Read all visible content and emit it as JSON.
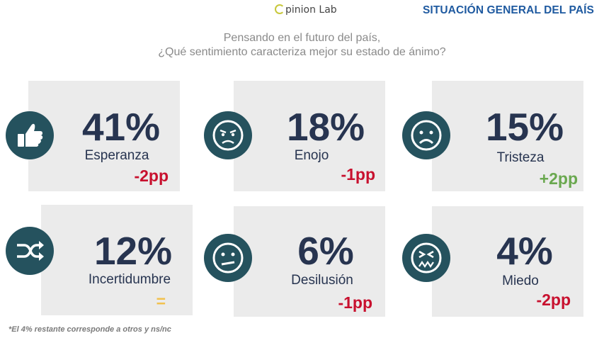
{
  "brand": {
    "logo_text": "pinion Lab"
  },
  "header": {
    "title": "SITUACIÓN GENERAL DEL PAÍS"
  },
  "question": {
    "line1": "Pensando en el futuro del país,",
    "line2": "¿Qué sentimiento caracteriza mejor su estado de ánimo?"
  },
  "colors": {
    "card_bg": "#ebebeb",
    "icon_bg": "#25525e",
    "text_dark": "#273450",
    "negative": "#c8102e",
    "positive": "#6aa84f",
    "neutral": "#f2c14e",
    "title_blue": "#1f5aa0"
  },
  "chart_data": {
    "type": "table",
    "title": "Pensando en el futuro del país, ¿Qué sentimiento caracteriza mejor su estado de ánimo?",
    "unit": "%",
    "categories": [
      "Esperanza",
      "Enojo",
      "Tristeza",
      "Incertidumbre",
      "Desilusión",
      "Miedo"
    ],
    "values": [
      41,
      18,
      15,
      12,
      6,
      4
    ],
    "change_pp": [
      -2,
      -1,
      2,
      0,
      -1,
      -2
    ],
    "items": [
      {
        "pct": "41%",
        "label": "Esperanza",
        "delta": "-2pp",
        "icon": "thumbs-up-icon"
      },
      {
        "pct": "18%",
        "label": "Enojo",
        "delta": "-1pp",
        "icon": "angry-face-icon"
      },
      {
        "pct": "15%",
        "label": "Tristeza",
        "delta": "+2pp",
        "icon": "sad-face-icon"
      },
      {
        "pct": "12%",
        "label": "Incertidumbre",
        "delta": "=",
        "icon": "shuffle-icon"
      },
      {
        "pct": "6%",
        "label": "Desilusión",
        "delta": "-1pp",
        "icon": "disappointed-face-icon"
      },
      {
        "pct": "4%",
        "label": "Miedo",
        "delta": "-2pp",
        "icon": "scared-face-icon"
      }
    ]
  },
  "footnote": "*El 4% restante corresponde a otros y ns/nc"
}
